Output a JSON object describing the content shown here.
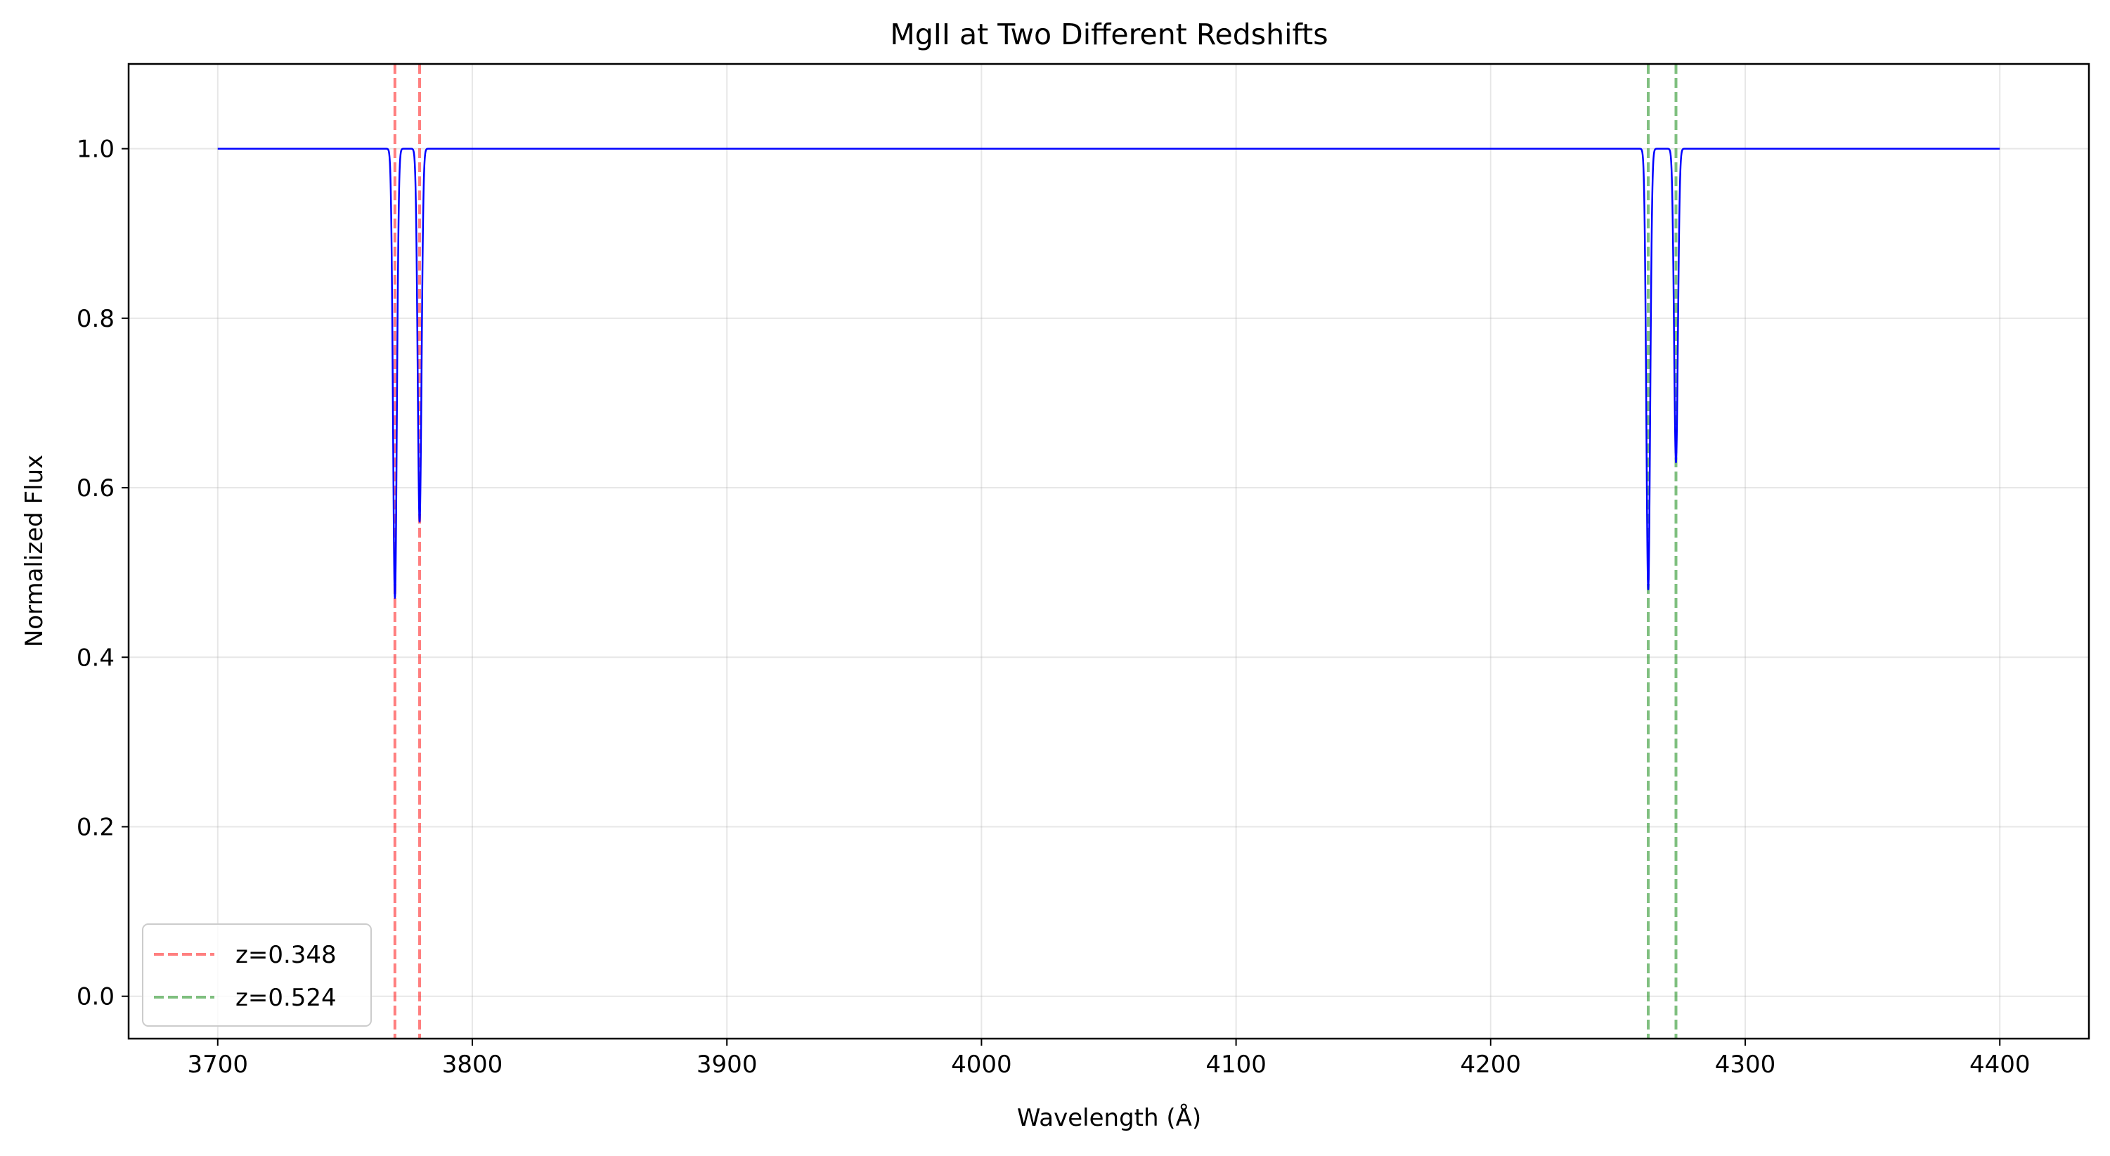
{
  "chart_data": {
    "type": "line",
    "title": "MgII at Two Different Redshifts",
    "xlabel": "Wavelength (Å)",
    "ylabel": "Normalized Flux",
    "xlim": [
      3665,
      4435
    ],
    "ylim": [
      -0.05,
      1.1
    ],
    "x_ticks": [
      3700,
      3800,
      3900,
      4000,
      4100,
      4200,
      4300,
      4400
    ],
    "x_tick_labels": [
      "3700",
      "3800",
      "3900",
      "4000",
      "4100",
      "4200",
      "4300",
      "4400"
    ],
    "y_ticks": [
      0.0,
      0.2,
      0.4,
      0.6,
      0.8,
      1.0
    ],
    "y_tick_labels": [
      "0.0",
      "0.2",
      "0.4",
      "0.6",
      "0.8",
      "1.0"
    ],
    "grid": true,
    "legend_position": "lower-left",
    "spectrum": {
      "color": "#0000ff",
      "x_range": [
        3700,
        4400
      ],
      "continuum": 1.0,
      "absorption_lines": [
        {
          "center": 3769.6,
          "depth": 0.53,
          "sigma": 0.75
        },
        {
          "center": 3779.3,
          "depth": 0.44,
          "sigma": 0.75
        },
        {
          "center": 4261.9,
          "depth": 0.52,
          "sigma": 0.75
        },
        {
          "center": 4272.8,
          "depth": 0.37,
          "sigma": 0.75
        }
      ]
    },
    "series": [
      {
        "name": "z=0.348",
        "color": "#ff0000",
        "opacity": 0.5,
        "style": "dashed",
        "lines_x": [
          3769.6,
          3779.3
        ]
      },
      {
        "name": "z=0.524",
        "color": "#008000",
        "opacity": 0.5,
        "style": "dashed",
        "lines_x": [
          4261.9,
          4272.8
        ]
      }
    ]
  }
}
